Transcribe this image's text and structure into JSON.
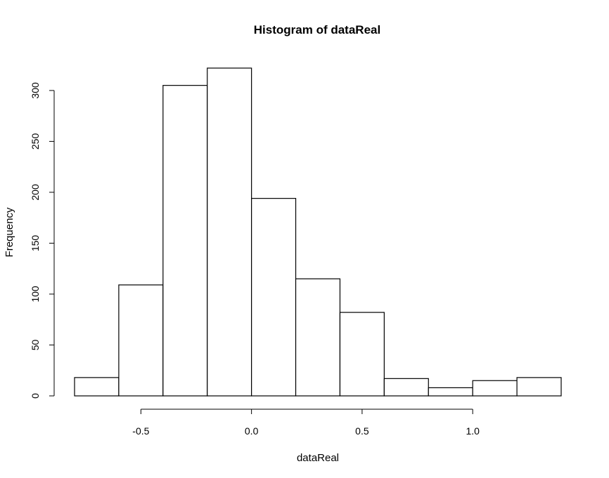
{
  "chart_data": {
    "type": "bar",
    "title": "Histogram of dataReal",
    "xlabel": "dataReal",
    "ylabel": "Frequency",
    "bin_edges": [
      -0.8,
      -0.6,
      -0.4,
      -0.2,
      0.0,
      0.2,
      0.4,
      0.6,
      0.8,
      1.0,
      1.2,
      1.4
    ],
    "values": [
      18,
      109,
      305,
      322,
      194,
      115,
      82,
      17,
      8,
      15,
      18
    ],
    "xlim": [
      -0.8,
      1.4
    ],
    "ylim": [
      0,
      322
    ],
    "x_ticks": [
      -0.5,
      0.0,
      0.5,
      1.0
    ],
    "x_tick_labels": [
      "-0.5",
      "0.0",
      "0.5",
      "1.0"
    ],
    "y_ticks": [
      0,
      50,
      100,
      150,
      200,
      250,
      300
    ],
    "y_tick_labels": [
      "0",
      "50",
      "100",
      "150",
      "200",
      "250",
      "300"
    ],
    "grid": false,
    "bar_fill": "#ffffff",
    "bar_stroke": "#000000"
  }
}
